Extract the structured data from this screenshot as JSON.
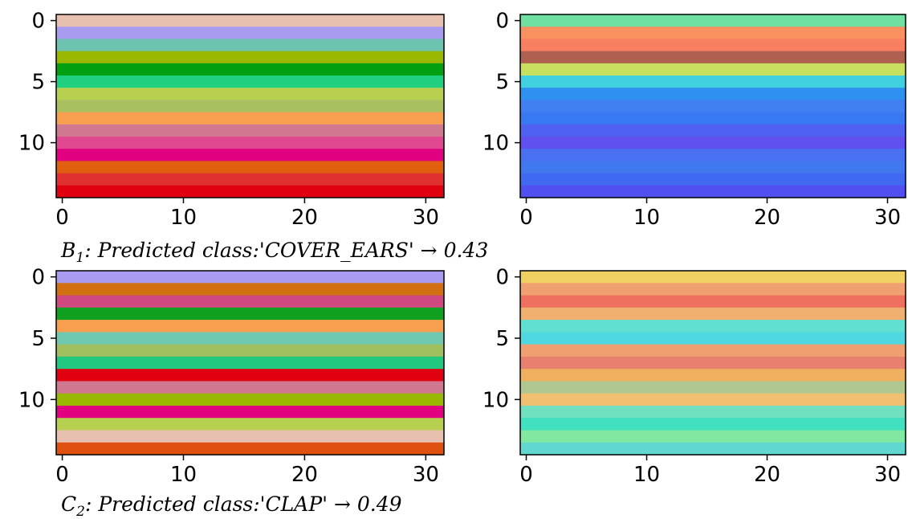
{
  "chart_data": [
    {
      "type": "heatmap",
      "xlim": [
        -0.5,
        31.5
      ],
      "ylim": [
        14.5,
        -0.5
      ],
      "xticks": [
        0,
        10,
        20,
        30
      ],
      "yticks": [
        0,
        5,
        10
      ],
      "row_colors": [
        "#e8c0b0",
        "#a99cf0",
        "#6cc4b0",
        "#9ab800",
        "#00a010",
        "#20d080",
        "#b8d050",
        "#a8c060",
        "#f8a050",
        "#d07890",
        "#e04890",
        "#e00080",
        "#e06010",
        "#e03030",
        "#e00010"
      ]
    },
    {
      "type": "heatmap",
      "xlim": [
        -0.5,
        31.5
      ],
      "ylim": [
        14.5,
        -0.5
      ],
      "xticks": [
        0,
        10,
        20,
        30
      ],
      "yticks": [
        0,
        5,
        10
      ],
      "row_colors": [
        "#70e0a0",
        "#f89060",
        "#f88060",
        "#b06050",
        "#c8e060",
        "#40d0e0",
        "#3090f0",
        "#4080f0",
        "#3878f0",
        "#5060f0",
        "#6050f0",
        "#4870f0",
        "#4078f0",
        "#4068f0",
        "#5050f0"
      ]
    },
    {
      "type": "heatmap",
      "xlim": [
        -0.5,
        31.5
      ],
      "ylim": [
        14.5,
        -0.5
      ],
      "xticks": [
        0,
        10,
        20,
        30
      ],
      "yticks": [
        0,
        5,
        10
      ],
      "row_colors": [
        "#a99cf0",
        "#d07010",
        "#d04880",
        "#10a020",
        "#f8a050",
        "#70c8b0",
        "#a0c060",
        "#20c880",
        "#e00010",
        "#d07890",
        "#9ab800",
        "#e00080",
        "#b8d050",
        "#e8c0b0",
        "#e05010"
      ]
    },
    {
      "type": "heatmap",
      "xlim": [
        -0.5,
        31.5
      ],
      "ylim": [
        14.5,
        -0.5
      ],
      "xticks": [
        0,
        10,
        20,
        30
      ],
      "yticks": [
        0,
        5,
        10
      ],
      "row_colors": [
        "#f0d060",
        "#f0a070",
        "#f07060",
        "#f0b070",
        "#60e0d0",
        "#50d8e0",
        "#f0a070",
        "#e88070",
        "#f0b060",
        "#b0c890",
        "#f0c070",
        "#70e0c0",
        "#40e0c0",
        "#80e8a0",
        "#60d8d0"
      ]
    }
  ],
  "captions": [
    {
      "letter": "B",
      "sub": "1",
      "text": ": Predicted class:'COVER_EARS' → 0.43"
    },
    {
      "letter": "C",
      "sub": "2",
      "text": ": Predicted class:'CLAP' → 0.49"
    }
  ]
}
